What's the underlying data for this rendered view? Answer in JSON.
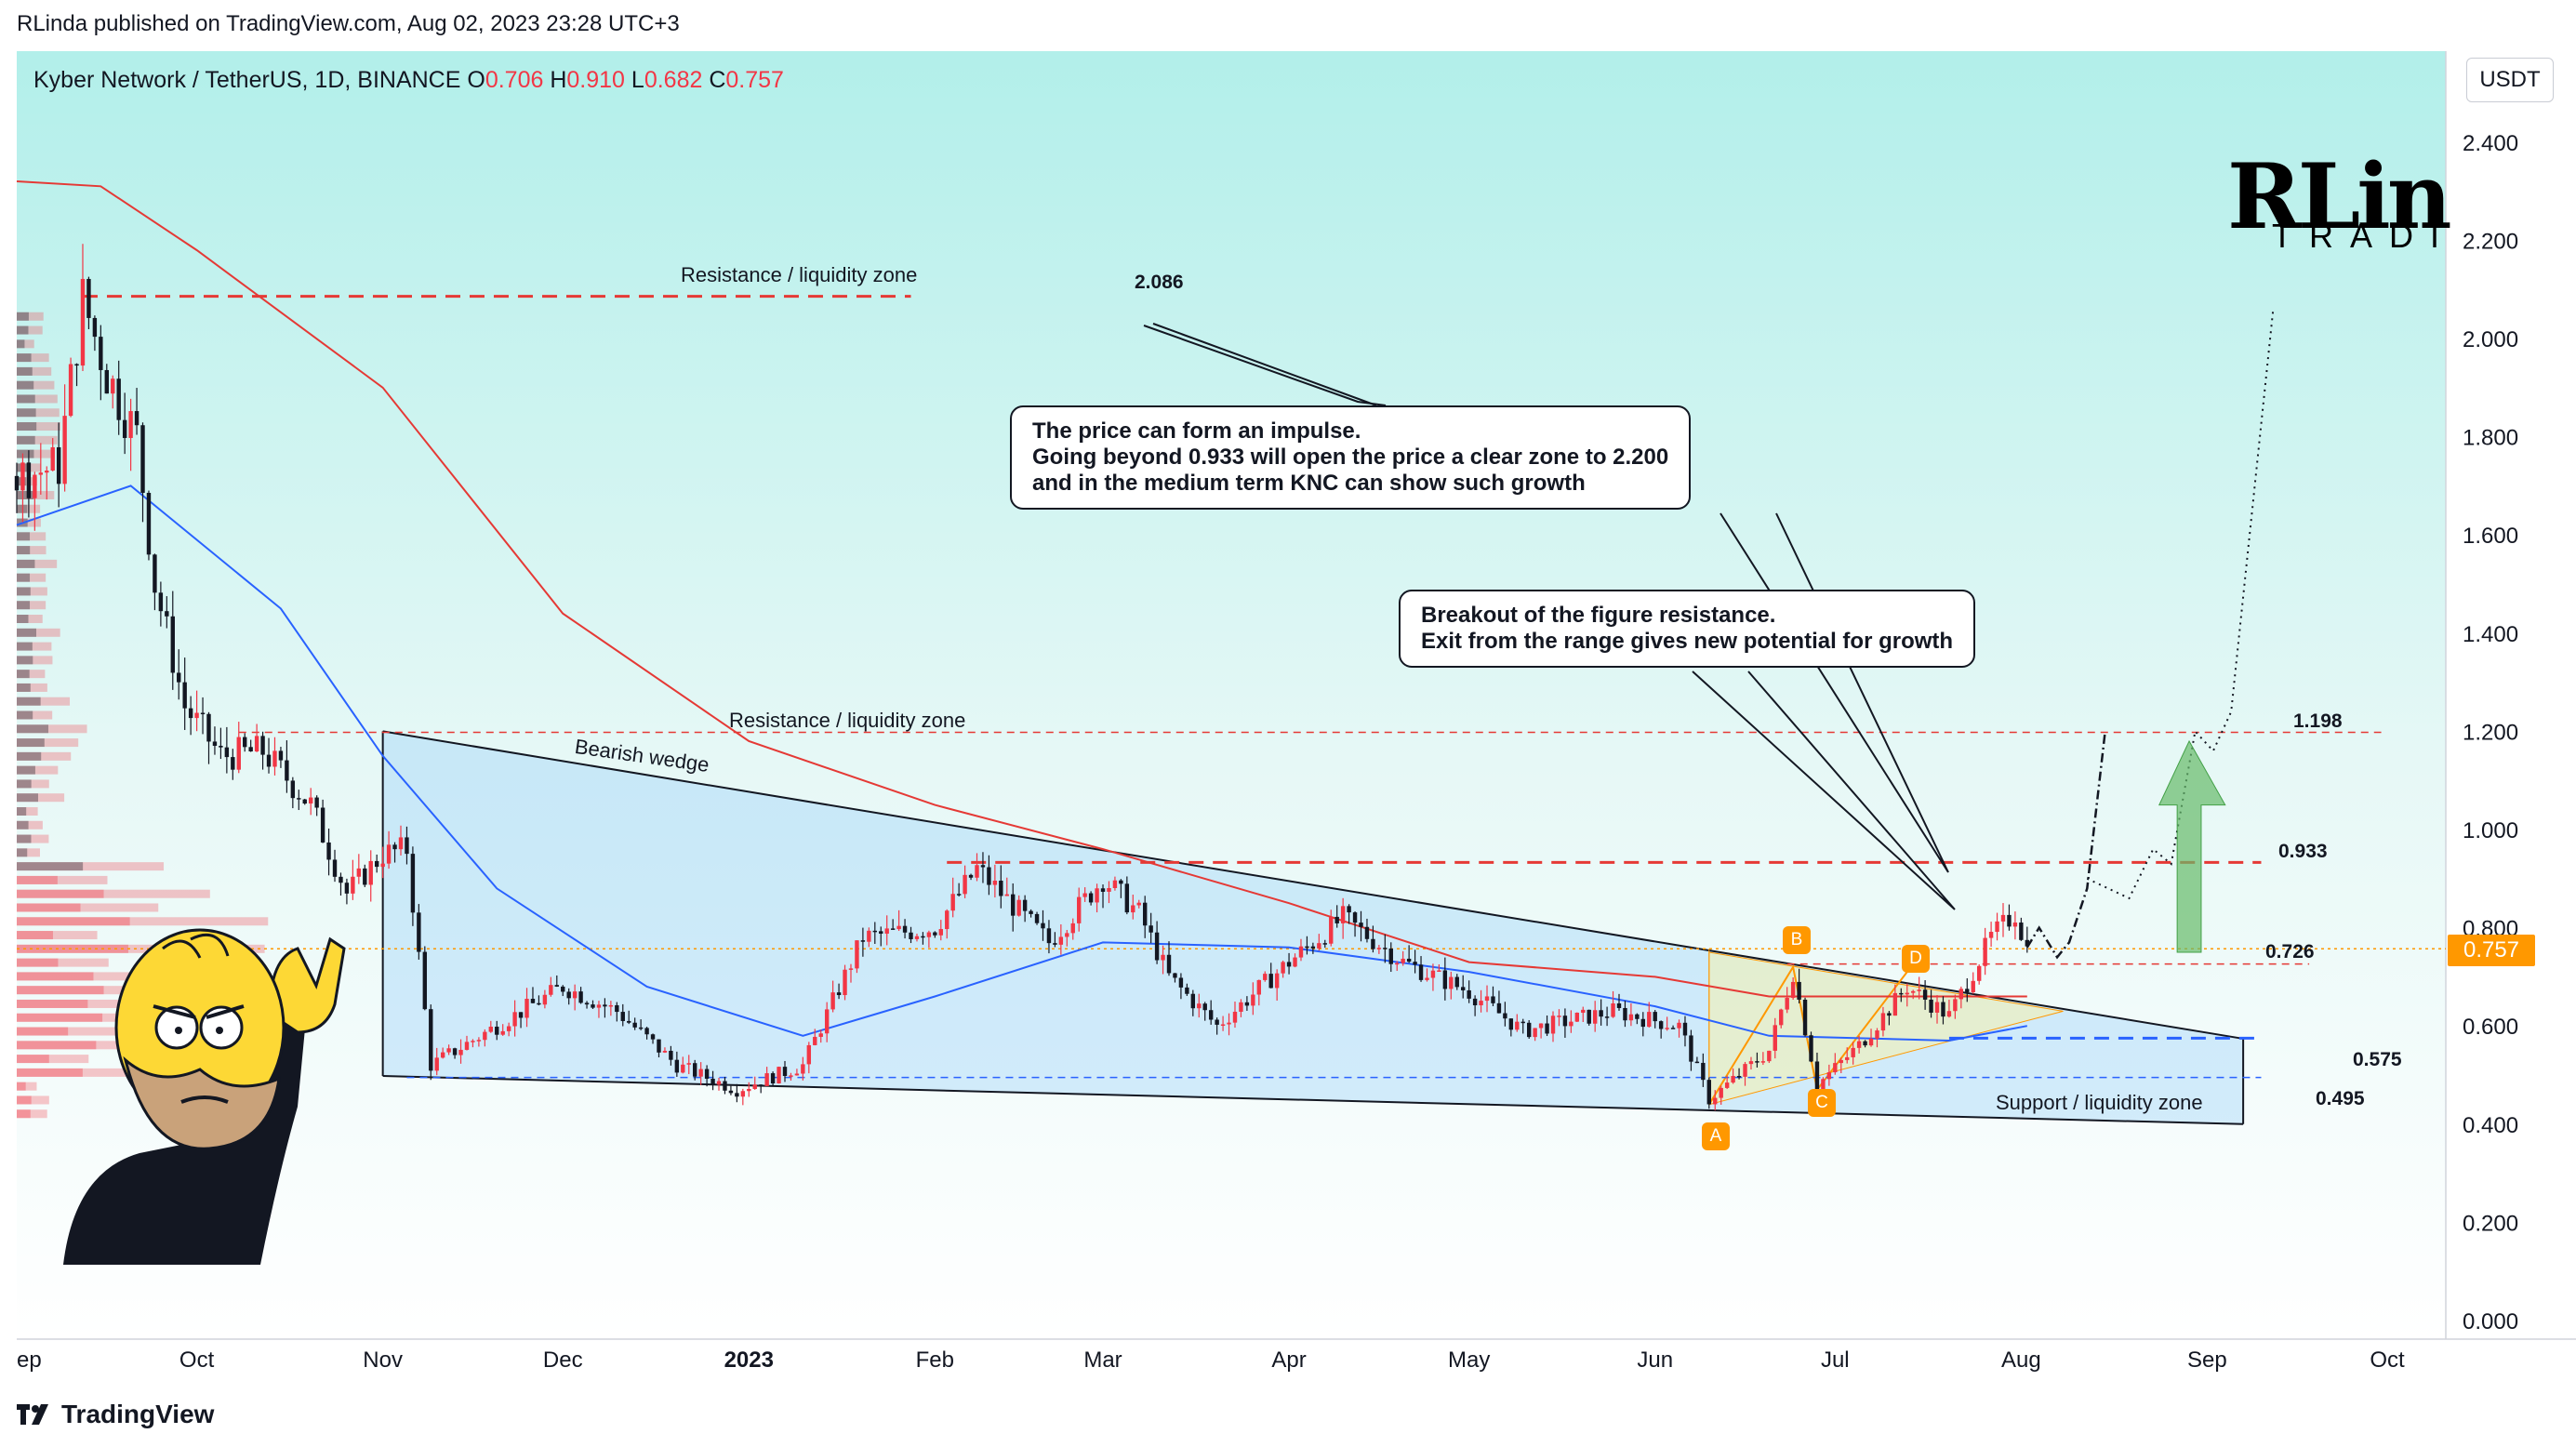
{
  "header": {
    "published": "RLinda published on TradingView.com, Aug 02, 2023 23:28 UTC+3",
    "symbol": "Kyber Network / TetherUS, 1D, BINANCE",
    "ohlc": [
      {
        "k": "O",
        "v": "0.706"
      },
      {
        "k": "H",
        "v": "0.910"
      },
      {
        "k": "L",
        "v": "0.682"
      },
      {
        "k": "C",
        "v": "0.757"
      }
    ],
    "currency": "USDT"
  },
  "footer": {
    "brand": "TradingView"
  },
  "logo": {
    "main": "RLinda",
    "sub": "TRADING"
  },
  "price_badge": "0.757",
  "callouts": {
    "impulse": [
      "The price can form an impulse.",
      "Going beyond 0.933 will open the price a clear zone to 2.200",
      "and in the medium term KNC can show such growth"
    ],
    "breakout": [
      "Breakout of the figure resistance.",
      "Exit from the range gives new potential for growth"
    ]
  },
  "labels": {
    "res_top": "Resistance / liquidity zone",
    "res_mid": "Resistance / liquidity zone",
    "support": "Support / liquidity zone",
    "wedge": "Bearish wedge",
    "lvl_2086": "2.086",
    "lvl_1198": "1.198",
    "lvl_0933": "0.933",
    "lvl_0726": "0.726",
    "lvl_0575": "0.575",
    "lvl_0495": "0.495"
  },
  "points": [
    "A",
    "B",
    "C",
    "D"
  ],
  "colors": {
    "bg_top": "#b2efea",
    "bg_bottom": "#ffffff",
    "up": "#f23645",
    "down": "#131722",
    "ma_red": "#e53935",
    "ma_blue": "#2962ff",
    "level": "#e53935",
    "support": "#2962ff",
    "accent": "#ff9800",
    "arrow": "#66bb6a"
  },
  "chart_data": {
    "type": "candlestick",
    "x_ticks": [
      "ep",
      "Oct",
      "Nov",
      "Dec",
      "2023",
      "Feb",
      "Mar",
      "Apr",
      "May",
      "Jun",
      "Jul",
      "Aug",
      "Sep",
      "Oct"
    ],
    "y_ticks": [
      "2.400",
      "2.200",
      "2.000",
      "1.800",
      "1.600",
      "1.400",
      "1.200",
      "1.000",
      "0.800",
      "0.600",
      "0.400",
      "0.200",
      "0.000"
    ],
    "ylim": [
      0,
      2.4
    ],
    "levels": [
      2.086,
      1.198,
      0.933,
      0.726,
      0.575,
      0.495
    ],
    "price_path": [
      [
        "2022-09-01",
        1.72
      ],
      [
        "2022-09-08",
        1.74
      ],
      [
        "2022-09-12",
        2.08
      ],
      [
        "2022-09-16",
        1.93
      ],
      [
        "2022-09-21",
        1.8
      ],
      [
        "2022-09-24",
        1.5
      ],
      [
        "2022-09-29",
        1.25
      ],
      [
        "2022-10-05",
        1.15
      ],
      [
        "2022-10-12",
        1.16
      ],
      [
        "2022-10-20",
        1.05
      ],
      [
        "2022-10-26",
        0.87
      ],
      [
        "2022-11-01",
        0.95
      ],
      [
        "2022-11-05",
        0.96
      ],
      [
        "2022-11-09",
        0.52
      ],
      [
        "2022-11-20",
        0.6
      ],
      [
        "2022-12-01",
        0.68
      ],
      [
        "2022-12-10",
        0.63
      ],
      [
        "2022-12-20",
        0.52
      ],
      [
        "2022-12-30",
        0.47
      ],
      [
        "2023-01-10",
        0.52
      ],
      [
        "2023-01-20",
        0.78
      ],
      [
        "2023-02-01",
        0.8
      ],
      [
        "2023-02-08",
        0.92
      ],
      [
        "2023-02-20",
        0.77
      ],
      [
        "2023-03-01",
        0.9
      ],
      [
        "2023-03-07",
        0.83
      ],
      [
        "2023-03-12",
        0.7
      ],
      [
        "2023-03-20",
        0.6
      ],
      [
        "2023-04-01",
        0.73
      ],
      [
        "2023-04-10",
        0.82
      ],
      [
        "2023-04-20",
        0.73
      ],
      [
        "2023-05-01",
        0.67
      ],
      [
        "2023-05-10",
        0.59
      ],
      [
        "2023-05-25",
        0.63
      ],
      [
        "2023-06-05",
        0.6
      ],
      [
        "2023-06-10",
        0.45
      ],
      [
        "2023-06-20",
        0.55
      ],
      [
        "2023-06-24",
        0.71
      ],
      [
        "2023-06-28",
        0.48
      ],
      [
        "2023-07-05",
        0.56
      ],
      [
        "2023-07-13",
        0.68
      ],
      [
        "2023-07-20",
        0.62
      ],
      [
        "2023-07-27",
        0.78
      ],
      [
        "2023-07-31",
        0.83
      ],
      [
        "2023-08-02",
        0.757
      ]
    ],
    "ma_red": [
      [
        "2022-09-01",
        2.32
      ],
      [
        "2022-09-15",
        2.31
      ],
      [
        "2022-10-01",
        2.18
      ],
      [
        "2022-11-01",
        1.9
      ],
      [
        "2022-12-01",
        1.44
      ],
      [
        "2023-01-01",
        1.18
      ],
      [
        "2023-02-01",
        1.05
      ],
      [
        "2023-03-01",
        0.96
      ],
      [
        "2023-04-01",
        0.85
      ],
      [
        "2023-05-01",
        0.73
      ],
      [
        "2023-06-01",
        0.7
      ],
      [
        "2023-06-20",
        0.66
      ],
      [
        "2023-08-02",
        0.66
      ]
    ],
    "ma_blue": [
      [
        "2022-09-01",
        1.62
      ],
      [
        "2022-09-20",
        1.7
      ],
      [
        "2022-10-15",
        1.45
      ],
      [
        "2022-11-01",
        1.15
      ],
      [
        "2022-11-20",
        0.88
      ],
      [
        "2022-12-15",
        0.68
      ],
      [
        "2023-01-10",
        0.58
      ],
      [
        "2023-02-01",
        0.66
      ],
      [
        "2023-03-01",
        0.77
      ],
      [
        "2023-04-01",
        0.76
      ],
      [
        "2023-05-01",
        0.71
      ],
      [
        "2023-06-01",
        0.64
      ],
      [
        "2023-06-20",
        0.58
      ],
      [
        "2023-07-20",
        0.57
      ],
      [
        "2023-08-02",
        0.6
      ]
    ]
  }
}
